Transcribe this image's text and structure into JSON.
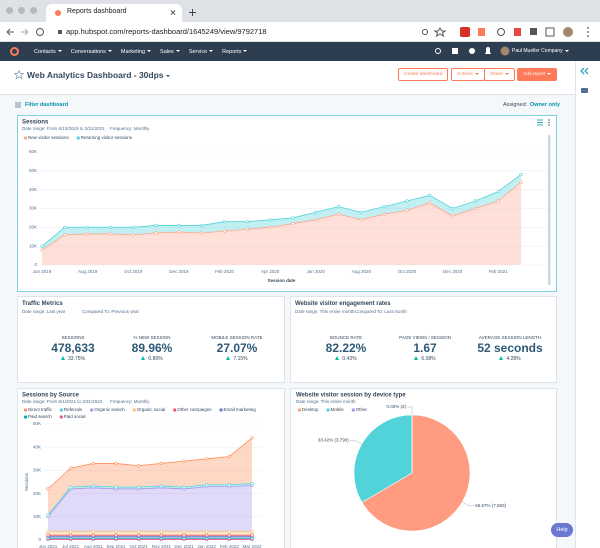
{
  "browser": {
    "tab_title": "Reports dashboard",
    "url": "app.hubspot.com/reports-dashboard/1645249/view/9792718"
  },
  "nav": {
    "items": [
      "Contacts",
      "Conversations",
      "Marketing",
      "Sales",
      "Service",
      "Reports"
    ],
    "account": "Paul Mueller Company"
  },
  "dashboard": {
    "title": "Web Analytics Dashboard - 30dps",
    "buttons": [
      "Create dashboard",
      "Actions",
      "Share",
      "Add report"
    ],
    "filter": "Filter dashboard",
    "assigned_label": "Assigned:",
    "assigned_value": "Owner only"
  },
  "metric_cards": [
    {
      "title": "Traffic Metrics",
      "date_range": "Date range: Last year",
      "compared_to": "Compared To: Previous year",
      "metrics": [
        {
          "label": "SESSIONS",
          "value": "478,633",
          "change": "33.75%"
        },
        {
          "label": "% NEW SESSION",
          "value": "89.96%",
          "change": "0.89%"
        },
        {
          "label": "MOBILE SESSION RATE",
          "value": "27.07%",
          "change": "7.15%"
        }
      ]
    },
    {
      "title": "Website visitor engagement rates",
      "date_range": "Date range: This entire month",
      "compared_to": "Compared To: Last month",
      "metrics": [
        {
          "label": "BOUNCE RATE",
          "value": "82.22%",
          "change": "0.43%"
        },
        {
          "label": "PAGE VIEWS / SESSION",
          "value": "1.67",
          "change": "6.08%"
        },
        {
          "label": "AVERAGE SESSION LENGTH",
          "value": "52 seconds",
          "change": "4.28%"
        }
      ]
    }
  ],
  "help": "Help",
  "chart_data": [
    {
      "type": "area",
      "title": "Sessions",
      "date_range": "Date range: From 6/13/2019 to 3/31/2021",
      "frequency": "Frequency: Monthly",
      "x_label": "Session date",
      "stacked": true,
      "stack_order": "first-at-bottom",
      "categories": [
        "Jun 2019",
        null,
        "Aug 2019",
        null,
        "Oct 2019",
        null,
        "Dec 2019",
        null,
        "Feb 2020",
        null,
        "Apr 2020",
        null,
        "Jun 2020",
        null,
        "Aug 2020",
        null,
        "Oct 2020",
        null,
        "Dec 2020",
        null,
        "Feb 2021",
        null
      ],
      "series": [
        {
          "name": "New visitor sessions",
          "color": "#fea58e",
          "values": [
            8000,
            16000,
            16500,
            16500,
            16000,
            17000,
            17500,
            17000,
            18000,
            19000,
            20000,
            22000,
            24000,
            27000,
            24000,
            27000,
            29000,
            33000,
            26000,
            30000,
            34000,
            44000
          ]
        },
        {
          "name": "Returning visitor sessions",
          "color": "#51d3d9",
          "values": [
            2000,
            4000,
            3500,
            3500,
            4000,
            4000,
            3500,
            4000,
            5000,
            4000,
            4000,
            3000,
            4000,
            4000,
            4000,
            4000,
            5000,
            4000,
            4000,
            4000,
            5000,
            4000
          ]
        }
      ],
      "ylim": [
        0,
        60000
      ],
      "yticks": [
        0,
        {
          "value": 10000,
          "label": "10K"
        },
        {
          "value": 20000,
          "label": "20K"
        },
        {
          "value": 30000,
          "label": "30K"
        },
        {
          "value": 40000,
          "label": "40K"
        },
        {
          "value": 50000,
          "label": "50K"
        },
        {
          "value": 60000,
          "label": "60K"
        }
      ],
      "grid": true
    },
    {
      "type": "area",
      "title": "Sessions by Source",
      "date_range": "Date range: From 6/1/2021 to 3/31/2022",
      "frequency": "Frequency: Monthly",
      "y_label": "Sessions",
      "stacked": true,
      "stack_order": "last-at-bottom",
      "categories": [
        "Jun 2021",
        "Jul 2021",
        "Aug 2021",
        "Sep 2021",
        "Oct 2021",
        "Nov 2021",
        "Dec 2021",
        "Jan 2022",
        "Feb 2022",
        "Mar 2022"
      ],
      "series": [
        {
          "name": "Direct traffic",
          "color": "#ff8f59",
          "values": [
            11200,
            8200,
            9700,
            10200,
            9200,
            9700,
            11200,
            11200,
            12200,
            19700
          ]
        },
        {
          "name": "Referrals",
          "color": "#51d3d9",
          "values": [
            800,
            800,
            800,
            800,
            800,
            800,
            800,
            800,
            800,
            800
          ]
        },
        {
          "name": "Organic search",
          "color": "#a893ec",
          "values": [
            6400,
            18400,
            18900,
            18400,
            18400,
            18900,
            18400,
            19400,
            19400,
            19900
          ]
        },
        {
          "name": "Organic social",
          "color": "#f5c26b",
          "values": [
            1500,
            1500,
            1500,
            1500,
            1500,
            1500,
            1500,
            1500,
            1500,
            1500
          ]
        },
        {
          "name": "Other campaigns",
          "color": "#f2545b",
          "values": [
            500,
            500,
            500,
            500,
            500,
            500,
            500,
            500,
            500,
            500
          ]
        },
        {
          "name": "Email marketing",
          "color": "#6a78d1",
          "values": [
            800,
            800,
            800,
            800,
            800,
            800,
            800,
            800,
            800,
            800
          ]
        },
        {
          "name": "Paid search",
          "color": "#00a4bd",
          "values": [
            500,
            500,
            500,
            500,
            500,
            500,
            500,
            500,
            500,
            500
          ]
        },
        {
          "name": "Paid social",
          "color": "#f2547d",
          "values": [
            300,
            300,
            300,
            300,
            300,
            300,
            300,
            300,
            300,
            300
          ]
        }
      ],
      "ylim": [
        0,
        50000
      ],
      "yticks": [
        0,
        {
          "value": 10000,
          "label": "10K"
        },
        {
          "value": 20000,
          "label": "20K"
        },
        {
          "value": 30000,
          "label": "30K"
        },
        {
          "value": 40000,
          "label": "40K"
        },
        {
          "value": 50000,
          "label": "50K"
        }
      ],
      "grid": true
    },
    {
      "type": "pie",
      "title": "Website visitor session by device type",
      "date_range": "Date range: This entire month",
      "categories": [
        "Desktop",
        "Mobile",
        "Other"
      ],
      "values": [
        66.57,
        33.42,
        0.02
      ],
      "value_labels": [
        "66.57% (7,550)",
        "33.42% (3,790)",
        "0.02% (2)"
      ],
      "colors": [
        "#ff9b80",
        "#51d3d9",
        "#a893ec"
      ]
    }
  ]
}
